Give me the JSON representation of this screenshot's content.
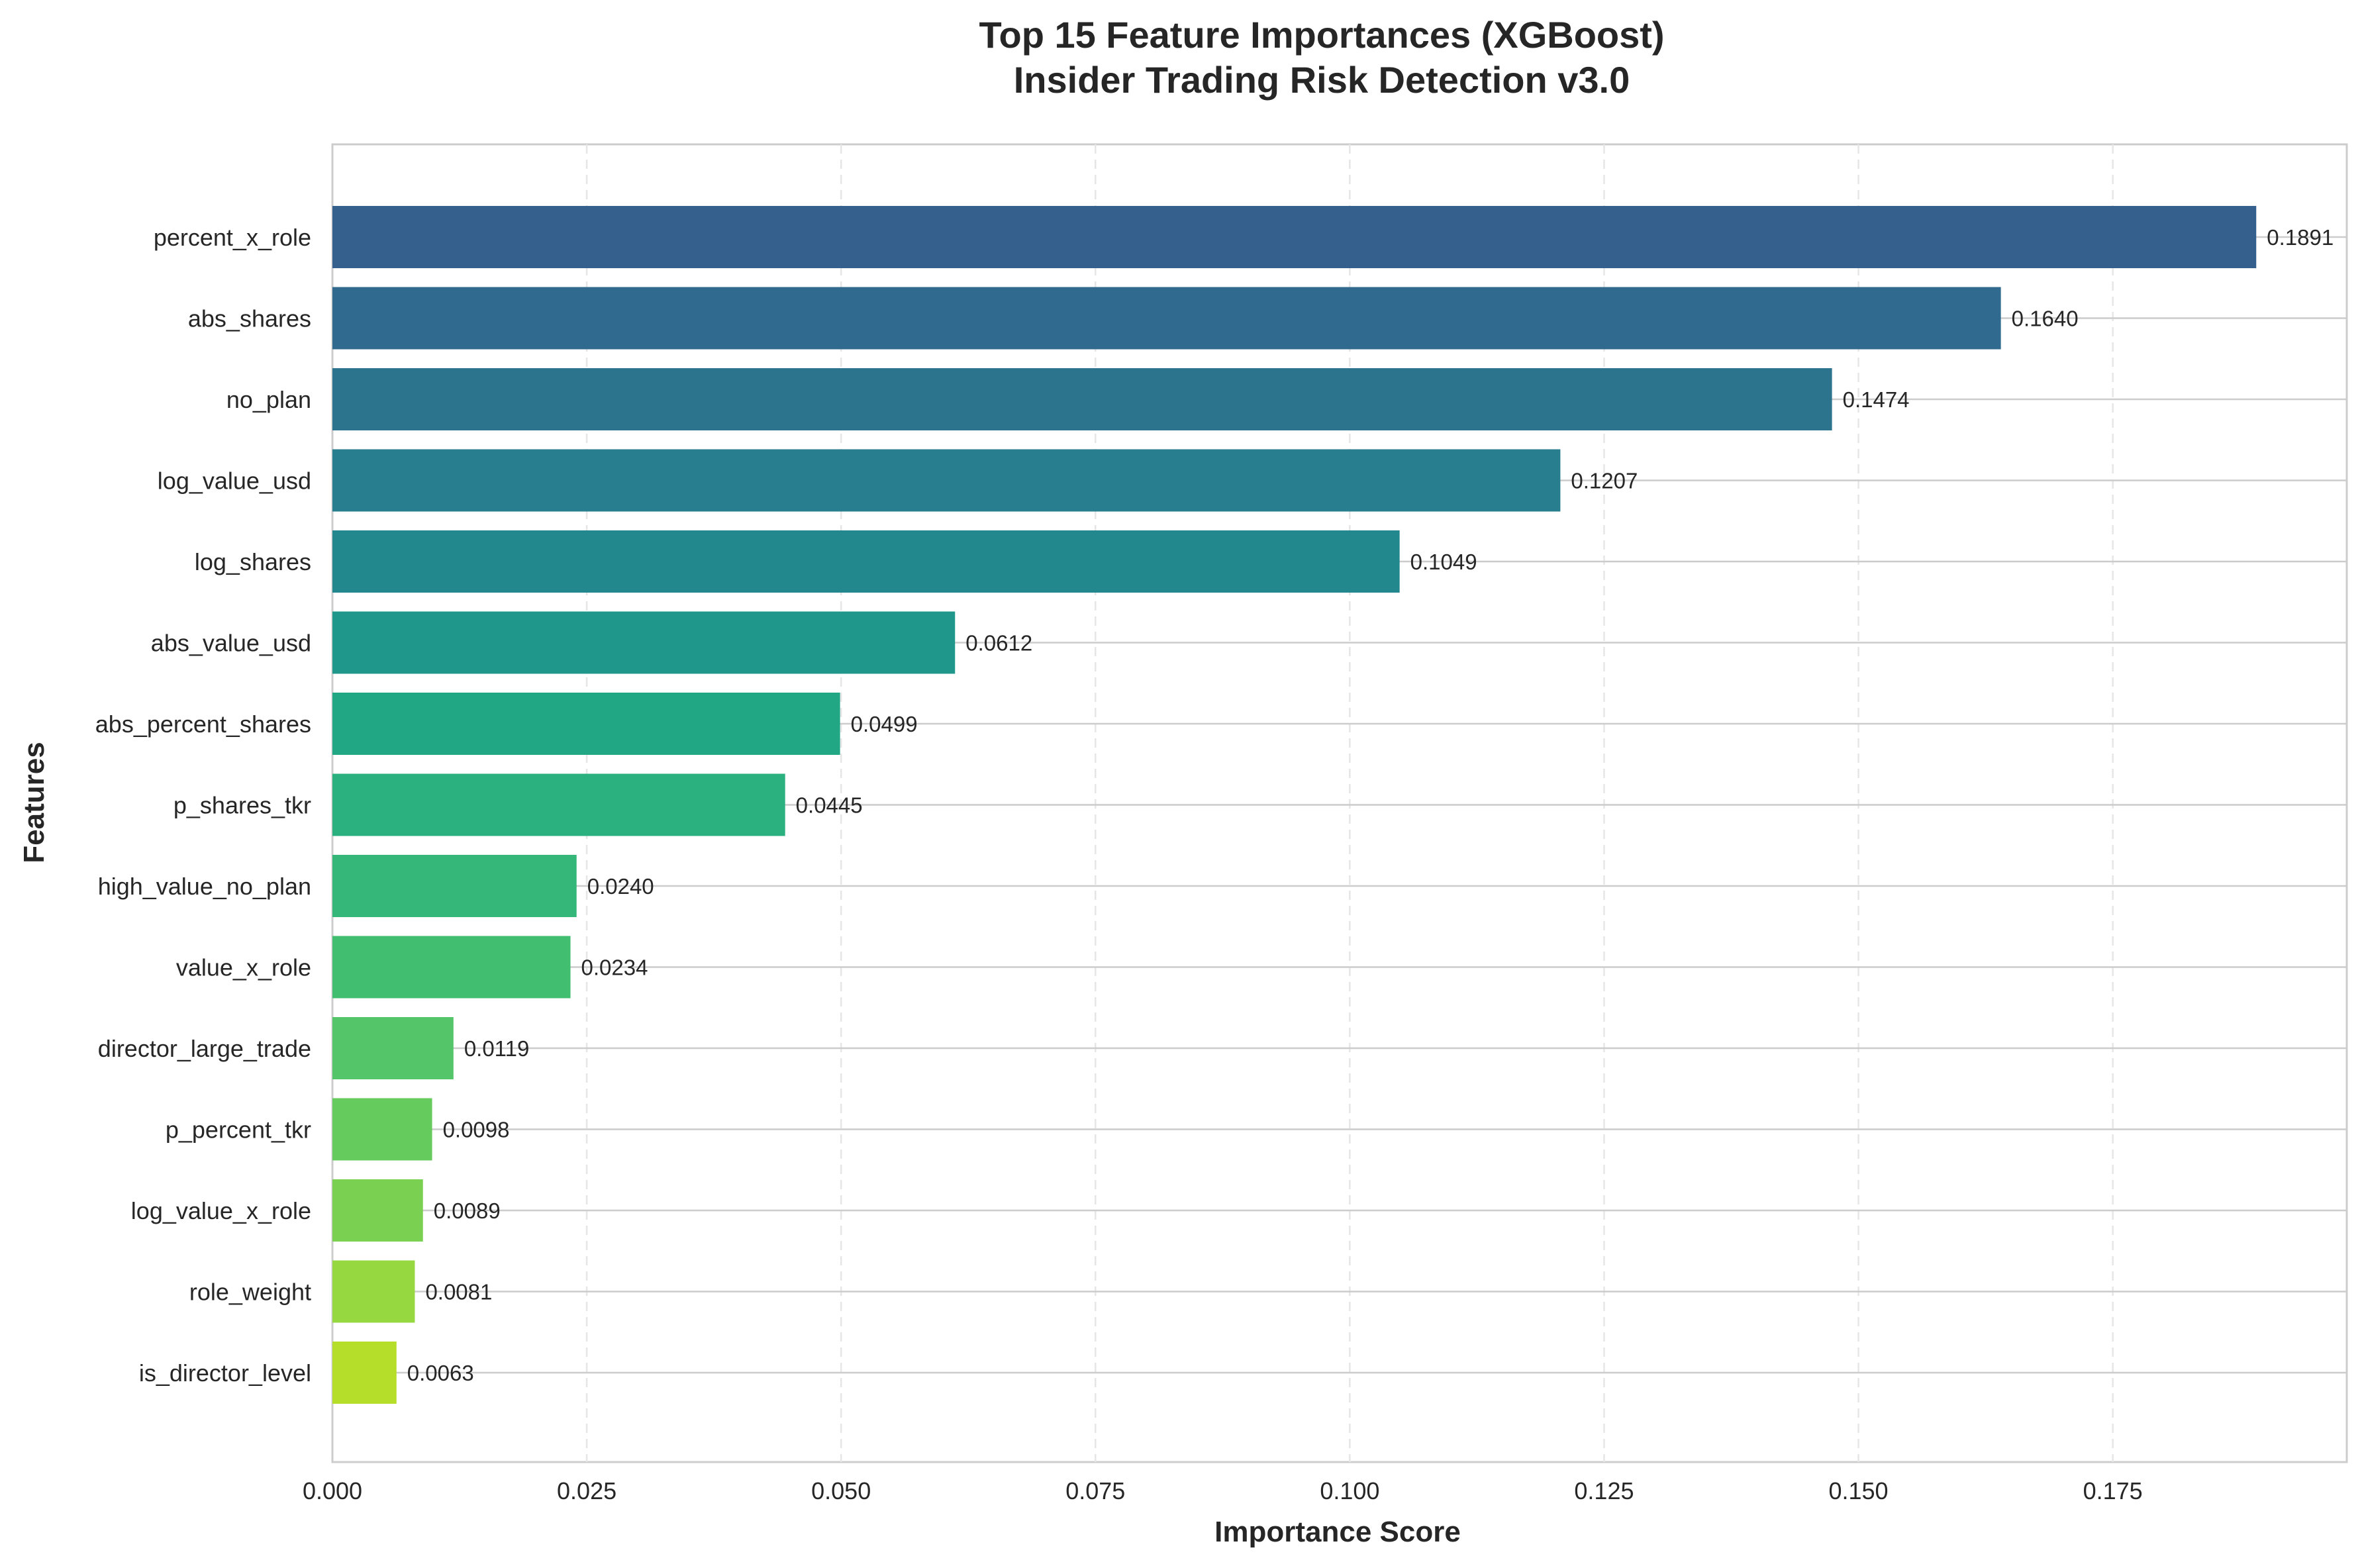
{
  "chart_data": {
    "type": "bar",
    "orientation": "horizontal",
    "title": "Top 15 Feature Importances (XGBoost)",
    "subtitle": "Insider Trading Risk Detection v3.0",
    "xlabel": "Importance Score",
    "ylabel": "Features",
    "xlim": [
      0,
      0.198
    ],
    "xticks": [
      0.0,
      0.025,
      0.05,
      0.075,
      0.1,
      0.125,
      0.15,
      0.175
    ],
    "xtick_labels": [
      "0.000",
      "0.025",
      "0.050",
      "0.075",
      "0.100",
      "0.125",
      "0.150",
      "0.175"
    ],
    "categories": [
      "percent_x_role",
      "abs_shares",
      "no_plan",
      "log_value_usd",
      "log_shares",
      "abs_value_usd",
      "abs_percent_shares",
      "p_shares_tkr",
      "high_value_no_plan",
      "value_x_role",
      "director_large_trade",
      "p_percent_tkr",
      "log_value_x_role",
      "role_weight",
      "is_director_level"
    ],
    "values": [
      0.1891,
      0.164,
      0.1474,
      0.1207,
      0.1049,
      0.0612,
      0.0499,
      0.0445,
      0.024,
      0.0234,
      0.0119,
      0.0098,
      0.0089,
      0.0081,
      0.0063
    ],
    "value_labels": [
      "0.1891",
      "0.1640",
      "0.1474",
      "0.1207",
      "0.1049",
      "0.0612",
      "0.0499",
      "0.0445",
      "0.0240",
      "0.0234",
      "0.0119",
      "0.0098",
      "0.0089",
      "0.0081",
      "0.0063"
    ],
    "colors": [
      "#355f8d",
      "#306a8e",
      "#2c738e",
      "#287d8e",
      "#23888e",
      "#1f988b",
      "#22a785",
      "#2bb07f",
      "#35b779",
      "#42be71",
      "#54c568",
      "#66cb5d",
      "#7ad151",
      "#95d840",
      "#b5de2b"
    ],
    "grid": {
      "x": "dashed",
      "y": "solid"
    },
    "legend": "none"
  }
}
